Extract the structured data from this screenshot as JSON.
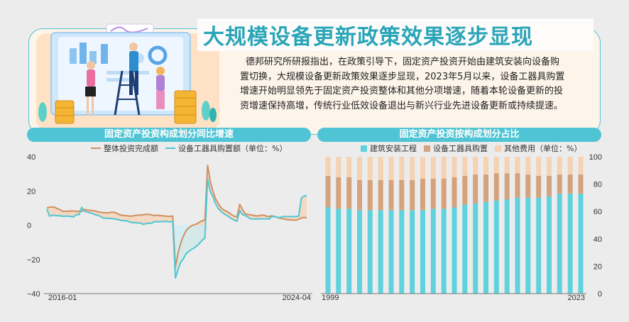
{
  "banner": {
    "title": "大规模设备更新政策效果逐步显现",
    "text": "德邦研究所研报指出，在政策引导下，固定资产投资开始由建筑安装向设备购置切换，大规模设备更新政策效果逐步显现，2023年5月以来，设备工器具购置增速开始明显领先于固定资产投资整体和其他分项增速，随着本轮设备更新的投资增速保持高增，传统行业低效设备退出与新兴行业先进设备更新或持续提速。"
  },
  "colors": {
    "accent": "#4fc4d4",
    "title": "#2aa5b8",
    "orange": "#d09060",
    "light_orange": "#f4d2b2",
    "cyan": "#5fd2de"
  },
  "chart_data": [
    {
      "type": "line",
      "title": "固定资产投资构成划分同比增速",
      "legend_unit": "（单位：%）",
      "xlabel_start": "2016-01",
      "xlabel_end": "2024-04",
      "ylim": [
        -40,
        40
      ],
      "yticks": [
        "40",
        "20",
        "0",
        "−20",
        "−40"
      ],
      "series": [
        {
          "name": "整体投资完成额",
          "color": "#d09060",
          "values": [
            10.2,
            10.5,
            10.7,
            10.4,
            9.6,
            9.0,
            8.1,
            8.1,
            8.2,
            8.3,
            8.3,
            8.1,
            8.3,
            8.1,
            9.2,
            8.9,
            8.6,
            8.6,
            8.3,
            7.8,
            7.5,
            7.3,
            7.2,
            7.2,
            7.6,
            7.5,
            7.0,
            6.2,
            5.8,
            5.6,
            5.5,
            5.3,
            5.4,
            5.7,
            5.9,
            5.9,
            6.1,
            6.3,
            6.3,
            6.1,
            5.6,
            5.8,
            5.7,
            5.5,
            5.4,
            5.2,
            5.2,
            5.4,
            -24.5,
            -16.1,
            -10.3,
            -6.3,
            -3.1,
            -1.6,
            -0.3,
            0.3,
            0.8,
            1.8,
            2.6,
            2.9,
            35.0,
            25.6,
            19.9,
            15.4,
            12.6,
            10.3,
            8.9,
            8.2,
            7.3,
            6.1,
            5.2,
            4.9,
            12.2,
            9.3,
            6.7,
            6.2,
            6.1,
            5.7,
            5.5,
            5.4,
            5.9,
            5.8,
            5.3,
            5.1,
            5.5,
            5.1,
            4.7,
            4.0,
            3.8,
            3.4,
            3.2,
            3.1,
            2.9,
            3.0,
            3.4,
            4.2,
            4.5,
            4.2
          ]
        },
        {
          "name": "设备工器具购置额",
          "color": "#4fc6d4",
          "values": [
            9.5,
            5.3,
            5.7,
            5.8,
            5.5,
            5.5,
            5.2,
            5.3,
            5.3,
            5.1,
            4.8,
            6.2,
            6.1,
            10.4,
            8.2,
            7.7,
            7.2,
            6.9,
            6.1,
            5.8,
            5.1,
            4.2,
            4.1,
            4.0,
            3.9,
            3.7,
            3.5,
            3.1,
            2.7,
            2.7,
            2.4,
            1.8,
            1.5,
            1.5,
            1.3,
            1.3,
            0.5,
            0.9,
            1.1,
            1.1,
            1.9,
            2.1,
            2.0,
            2.2,
            2.2,
            2.1,
            2.0,
            2.1,
            -30.9,
            -25.7,
            -21.5,
            -19.6,
            -16.7,
            -15.3,
            -14.1,
            -13.3,
            -12.1,
            -10.6,
            -8.8,
            -7.6,
            27.0,
            19.7,
            16.7,
            12.6,
            9.7,
            8.1,
            6.8,
            5.9,
            4.8,
            3.7,
            3.0,
            2.3,
            8.6,
            6.2,
            5.7,
            4.8,
            3.7,
            3.6,
            3.6,
            3.7,
            3.7,
            3.7,
            3.7,
            3.6,
            5.1,
            5.0,
            4.5,
            4.4,
            5.0,
            5.0,
            5.0,
            5.0,
            5.0,
            5.1,
            5.3,
            15.9,
            16.9,
            17.5
          ]
        }
      ]
    },
    {
      "type": "bar",
      "stacked": true,
      "title": "固定资产投资按构成划分占比",
      "legend_unit": "（单位：%）",
      "xlabel_start": "1999",
      "xlabel_end": "2023",
      "ylim": [
        0,
        100
      ],
      "yticks": [
        "100",
        "80",
        "60",
        "40",
        "20",
        "0"
      ],
      "categories": [
        "1999",
        "2000",
        "2001",
        "2002",
        "2003",
        "2004",
        "2005",
        "2006",
        "2007",
        "2008",
        "2009",
        "2010",
        "2011",
        "2012",
        "2013",
        "2014",
        "2015",
        "2016",
        "2017",
        "2018",
        "2019",
        "2020",
        "2021",
        "2022",
        "2023"
      ],
      "series": [
        {
          "name": "建筑安装工程",
          "color": "#5fd2de",
          "values": [
            63,
            62,
            62,
            61,
            61,
            61,
            61,
            61,
            61,
            61,
            62,
            62,
            63,
            65,
            66,
            67,
            68,
            69,
            70,
            70,
            70,
            71,
            73,
            73,
            73
          ]
        },
        {
          "name": "设备工器具购置",
          "color": "#d4a27c",
          "values": [
            23,
            23,
            23,
            22,
            22,
            22,
            22,
            22,
            22,
            23,
            22,
            22,
            22,
            21,
            21,
            20,
            20,
            19,
            18,
            17,
            16,
            15,
            14,
            14,
            14
          ]
        },
        {
          "name": "其他费用",
          "color": "#f4d2b2",
          "values": [
            14,
            15,
            15,
            17,
            17,
            17,
            17,
            17,
            17,
            16,
            16,
            16,
            15,
            14,
            13,
            13,
            12,
            12,
            12,
            13,
            14,
            14,
            13,
            13,
            13
          ]
        }
      ]
    }
  ]
}
